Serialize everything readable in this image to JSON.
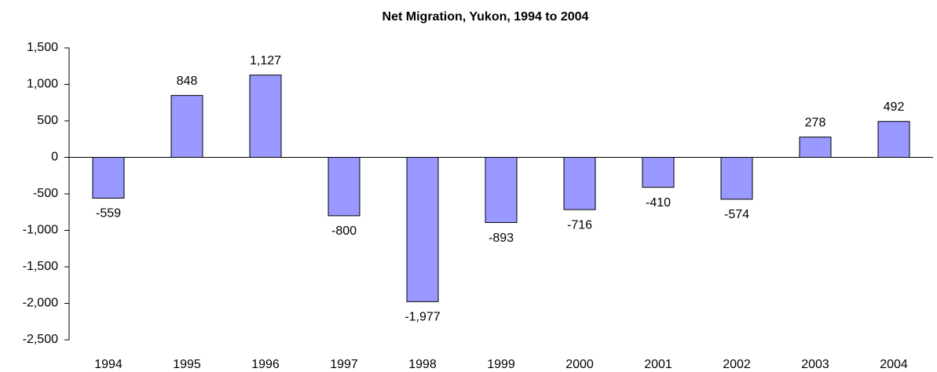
{
  "chart_data": {
    "type": "bar",
    "title": "Net Migration, Yukon, 1994 to 2004",
    "categories": [
      "1994",
      "1995",
      "1996",
      "1997",
      "1998",
      "1999",
      "2000",
      "2001",
      "2002",
      "2003",
      "2004"
    ],
    "values": [
      -559,
      848,
      1127,
      -800,
      -1977,
      -893,
      -716,
      -410,
      -574,
      278,
      492
    ],
    "value_labels": [
      "-559",
      "848",
      "1,127",
      "-800",
      "-1,977",
      "-893",
      "-716",
      "-410",
      "-574",
      "278",
      "492"
    ],
    "color": "#9999ff",
    "ylim": [
      -2500,
      1500
    ],
    "yticks": [
      {
        "value": -2500,
        "label": "-2,500"
      },
      {
        "value": -2000,
        "label": "-2,000"
      },
      {
        "value": -1500,
        "label": "-1,500"
      },
      {
        "value": -1000,
        "label": "-1,000"
      },
      -500,
      0,
      500,
      {
        "value": 1000,
        "label": "1,000"
      },
      {
        "value": 1500,
        "label": "1,500"
      }
    ]
  }
}
